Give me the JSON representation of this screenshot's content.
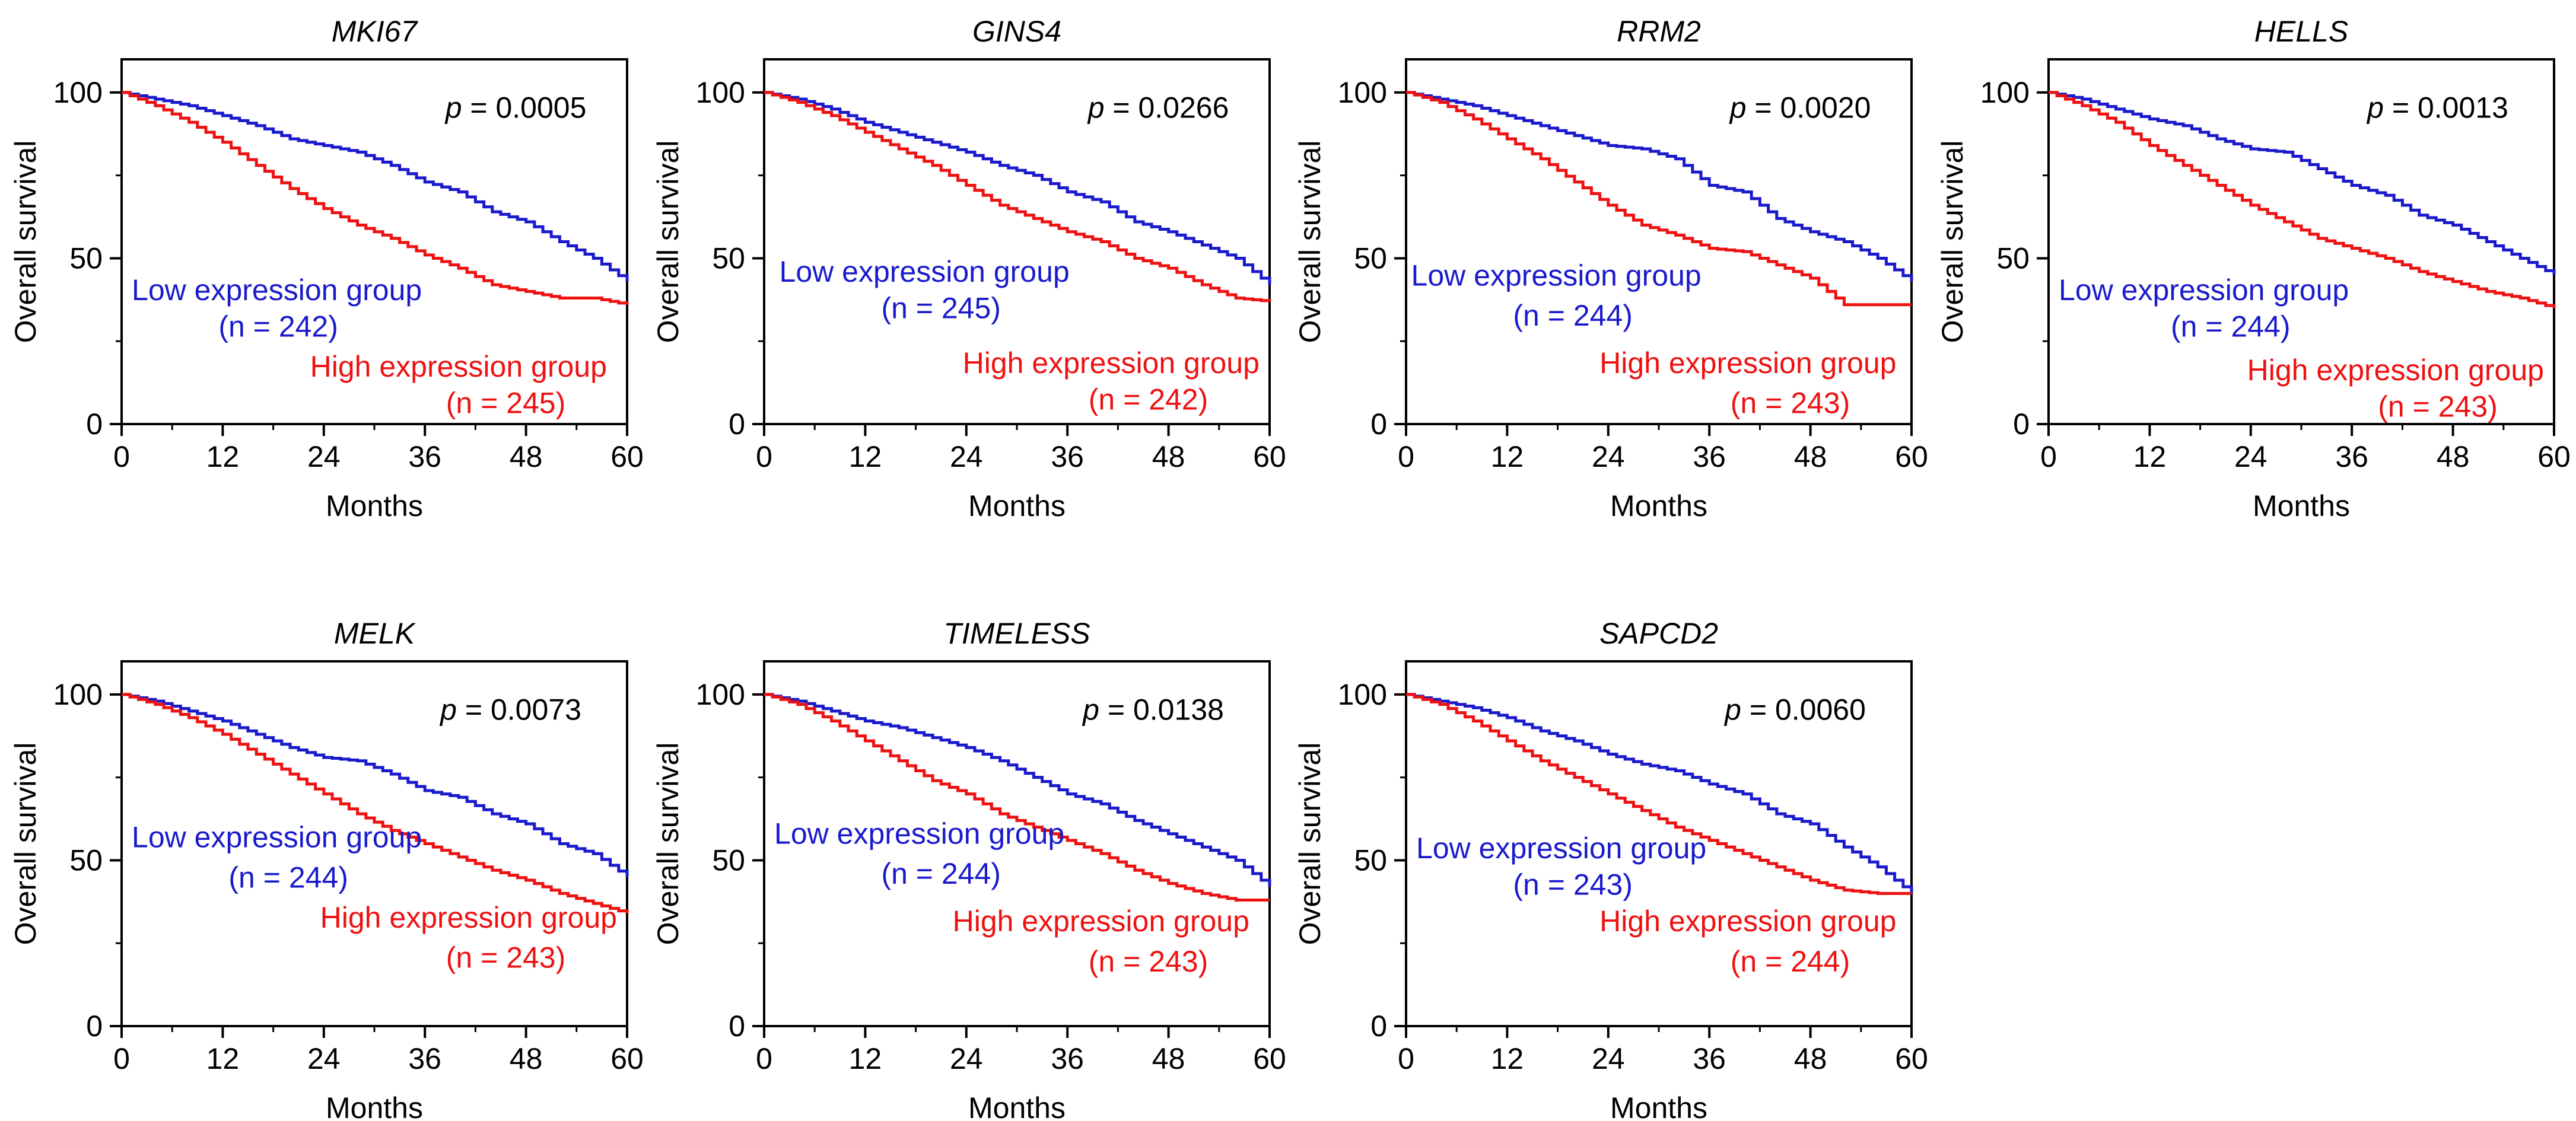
{
  "figure": {
    "colors": {
      "low": "#1a1acc",
      "high": "#ee1111",
      "axis": "#000000"
    }
  },
  "chart_data": [
    {
      "type": "line",
      "title": "MKI67",
      "p_label": "p",
      "p_value": "= 0.0005",
      "xlabel": "Months",
      "ylabel": "Overall survival",
      "xlim": [
        0,
        60
      ],
      "ylim": [
        0,
        110
      ],
      "xticks": [
        0,
        12,
        24,
        36,
        48,
        60
      ],
      "yticks": [
        0,
        50,
        100
      ],
      "series": [
        {
          "name": "Low expression group",
          "n_label": "(n = 242)",
          "x": [
            0,
            4,
            8,
            12,
            16,
            20,
            24,
            28,
            32,
            36,
            40,
            44,
            48,
            52,
            56,
            60
          ],
          "y": [
            100,
            98,
            96,
            93,
            90,
            86,
            84,
            82,
            78,
            73,
            70,
            64,
            61,
            55,
            50,
            43
          ]
        },
        {
          "name": "High expression group",
          "n_label": "(n = 245)",
          "x": [
            0,
            4,
            8,
            12,
            16,
            20,
            24,
            28,
            32,
            36,
            40,
            44,
            48,
            52,
            56,
            60
          ],
          "y": [
            100,
            96,
            91,
            85,
            78,
            71,
            65,
            60,
            56,
            51,
            47,
            42,
            40,
            38,
            38,
            36
          ]
        }
      ]
    },
    {
      "type": "line",
      "title": "GINS4",
      "p_label": "p",
      "p_value": "= 0.0266",
      "xlabel": "Months",
      "ylabel": "Overall survival",
      "xlim": [
        0,
        60
      ],
      "ylim": [
        0,
        110
      ],
      "xticks": [
        0,
        12,
        24,
        36,
        48,
        60
      ],
      "yticks": [
        0,
        50,
        100
      ],
      "series": [
        {
          "name": "Low expression group",
          "n_label": "(n = 245)",
          "x": [
            0,
            4,
            8,
            12,
            16,
            20,
            24,
            28,
            32,
            36,
            40,
            44,
            48,
            52,
            56,
            60
          ],
          "y": [
            100,
            98,
            95,
            91,
            88,
            85,
            82,
            78,
            75,
            70,
            67,
            61,
            58,
            54,
            50,
            42
          ]
        },
        {
          "name": "High expression group",
          "n_label": "(n = 242)",
          "x": [
            0,
            4,
            8,
            12,
            16,
            20,
            24,
            28,
            32,
            36,
            40,
            44,
            48,
            52,
            56,
            60
          ],
          "y": [
            100,
            97,
            93,
            88,
            83,
            78,
            72,
            66,
            62,
            58,
            55,
            50,
            47,
            42,
            38,
            37
          ]
        }
      ]
    },
    {
      "type": "line",
      "title": "RRM2",
      "p_label": "p",
      "p_value": "= 0.0020",
      "xlabel": "Months",
      "ylabel": "Overall survival",
      "xlim": [
        0,
        60
      ],
      "ylim": [
        0,
        110
      ],
      "xticks": [
        0,
        12,
        24,
        36,
        48,
        60
      ],
      "yticks": [
        0,
        50,
        100
      ],
      "series": [
        {
          "name": "Low expression group",
          "n_label": "(n = 244)",
          "x": [
            0,
            4,
            8,
            12,
            16,
            20,
            24,
            28,
            32,
            36,
            40,
            44,
            48,
            52,
            56,
            60
          ],
          "y": [
            100,
            98,
            96,
            93,
            90,
            87,
            84,
            83,
            80,
            72,
            70,
            62,
            58,
            55,
            50,
            43
          ]
        },
        {
          "name": "High expression group",
          "n_label": "(n = 243)",
          "x": [
            0,
            4,
            8,
            12,
            16,
            20,
            24,
            28,
            32,
            36,
            40,
            44,
            48,
            52,
            56,
            60
          ],
          "y": [
            100,
            97,
            92,
            86,
            80,
            73,
            66,
            60,
            57,
            53,
            52,
            48,
            44,
            36,
            36,
            36
          ]
        }
      ]
    },
    {
      "type": "line",
      "title": "HELLS",
      "p_label": "p",
      "p_value": "= 0.0013",
      "xlabel": "Months",
      "ylabel": "Overall survival",
      "xlim": [
        0,
        60
      ],
      "ylim": [
        0,
        110
      ],
      "xticks": [
        0,
        12,
        24,
        36,
        48,
        60
      ],
      "yticks": [
        0,
        50,
        100
      ],
      "series": [
        {
          "name": "Low expression group",
          "n_label": "(n = 244)",
          "x": [
            0,
            4,
            8,
            12,
            16,
            20,
            24,
            28,
            32,
            36,
            40,
            44,
            48,
            52,
            56,
            60
          ],
          "y": [
            100,
            98,
            95,
            92,
            90,
            86,
            83,
            82,
            77,
            72,
            69,
            63,
            60,
            55,
            50,
            45
          ]
        },
        {
          "name": "High expression group",
          "n_label": "(n = 243)",
          "x": [
            0,
            4,
            8,
            12,
            16,
            20,
            24,
            28,
            32,
            36,
            40,
            44,
            48,
            52,
            56,
            60
          ],
          "y": [
            100,
            96,
            91,
            84,
            78,
            72,
            66,
            61,
            56,
            53,
            50,
            46,
            43,
            40,
            38,
            35
          ]
        }
      ]
    },
    {
      "type": "line",
      "title": "MELK",
      "p_label": "p",
      "p_value": "= 0.0073",
      "xlabel": "Months",
      "ylabel": "Overall survival",
      "xlim": [
        0,
        60
      ],
      "ylim": [
        0,
        110
      ],
      "xticks": [
        0,
        12,
        24,
        36,
        48,
        60
      ],
      "yticks": [
        0,
        50,
        100
      ],
      "series": [
        {
          "name": "Low expression group",
          "n_label": "(n = 244)",
          "x": [
            0,
            4,
            8,
            12,
            16,
            20,
            24,
            28,
            32,
            36,
            40,
            44,
            48,
            52,
            56,
            60
          ],
          "y": [
            100,
            98,
            95,
            92,
            88,
            84,
            81,
            80,
            76,
            71,
            69,
            64,
            61,
            55,
            52,
            45
          ]
        },
        {
          "name": "High expression group",
          "n_label": "(n = 243)",
          "x": [
            0,
            4,
            8,
            12,
            16,
            20,
            24,
            28,
            32,
            36,
            40,
            44,
            48,
            52,
            56,
            60
          ],
          "y": [
            100,
            97,
            93,
            88,
            82,
            76,
            70,
            64,
            59,
            55,
            51,
            47,
            44,
            40,
            37,
            34
          ]
        }
      ]
    },
    {
      "type": "line",
      "title": "TIMELESS",
      "p_label": "p",
      "p_value": "= 0.0138",
      "xlabel": "Months",
      "ylabel": "Overall survival",
      "xlim": [
        0,
        60
      ],
      "ylim": [
        0,
        110
      ],
      "xticks": [
        0,
        12,
        24,
        36,
        48,
        60
      ],
      "yticks": [
        0,
        50,
        100
      ],
      "series": [
        {
          "name": "Low expression group",
          "n_label": "(n = 244)",
          "x": [
            0,
            4,
            8,
            12,
            16,
            20,
            24,
            28,
            32,
            36,
            40,
            44,
            48,
            52,
            56,
            60
          ],
          "y": [
            100,
            98,
            95,
            92,
            90,
            87,
            84,
            80,
            75,
            70,
            67,
            62,
            58,
            54,
            50,
            42
          ]
        },
        {
          "name": "High expression group",
          "n_label": "(n = 243)",
          "x": [
            0,
            4,
            8,
            12,
            16,
            20,
            24,
            28,
            32,
            36,
            40,
            44,
            48,
            52,
            56,
            60
          ],
          "y": [
            100,
            97,
            92,
            86,
            80,
            74,
            70,
            64,
            60,
            56,
            52,
            47,
            43,
            40,
            38,
            38
          ]
        }
      ]
    },
    {
      "type": "line",
      "title": "SAPCD2",
      "p_label": "p",
      "p_value": "= 0.0060",
      "xlabel": "Months",
      "ylabel": "Overall survival",
      "xlim": [
        0,
        60
      ],
      "ylim": [
        0,
        110
      ],
      "xticks": [
        0,
        12,
        24,
        36,
        48,
        60
      ],
      "yticks": [
        0,
        50,
        100
      ],
      "series": [
        {
          "name": "Low expression group",
          "n_label": "(n = 243)",
          "x": [
            0,
            4,
            8,
            12,
            16,
            20,
            24,
            28,
            32,
            36,
            40,
            44,
            48,
            52,
            56,
            60
          ],
          "y": [
            100,
            98,
            96,
            93,
            89,
            86,
            82,
            79,
            77,
            73,
            70,
            64,
            61,
            54,
            48,
            40
          ]
        },
        {
          "name": "High expression group",
          "n_label": "(n = 244)",
          "x": [
            0,
            4,
            8,
            12,
            16,
            20,
            24,
            28,
            32,
            36,
            40,
            44,
            48,
            52,
            56,
            60
          ],
          "y": [
            100,
            97,
            92,
            86,
            80,
            75,
            70,
            65,
            60,
            56,
            52,
            48,
            44,
            41,
            40,
            40
          ]
        }
      ]
    }
  ]
}
